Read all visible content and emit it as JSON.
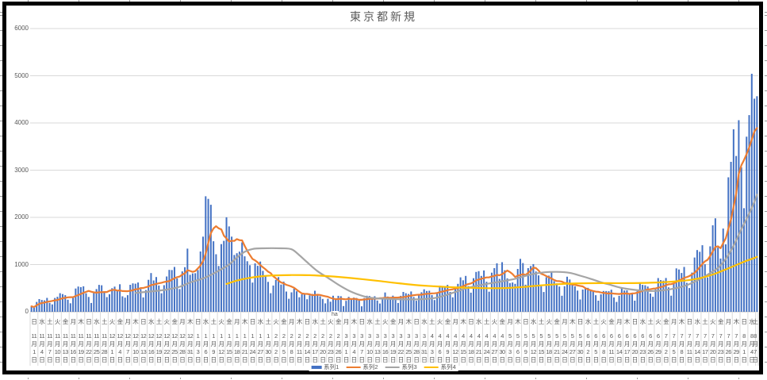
{
  "chart": {
    "title": "東京都新規",
    "stray_text": "ha"
  },
  "colors": {
    "bar": "#4472C4",
    "series2": "#ED7D31",
    "series3": "#A5A5A5",
    "series4": "#FFC000",
    "grid": "#D9D9D9",
    "axis_line": "#BFBFBF",
    "text": "#595959",
    "border": "#000000",
    "background": "#FFFFFF",
    "sheet_tick": "#9A9A9A"
  },
  "chart_data": {
    "type": "bar",
    "title": "東京都新規",
    "ylim": [
      0,
      6000
    ],
    "y_ticks": [
      0,
      1000,
      2000,
      3000,
      4000,
      5000,
      6000
    ],
    "grid": "horizontal",
    "legend_position": "bottom",
    "x_tick_every_days": 3,
    "label_suffix_month": "月",
    "label_suffix_day": "日",
    "x_tick_labels": [
      [
        "日",
        11,
        1
      ],
      [
        "水",
        11,
        4
      ],
      [
        "土",
        11,
        7
      ],
      [
        "火",
        11,
        10
      ],
      [
        "金",
        11,
        13
      ],
      [
        "月",
        11,
        16
      ],
      [
        "木",
        11,
        19
      ],
      [
        "日",
        11,
        22
      ],
      [
        "水",
        11,
        25
      ],
      [
        "土",
        11,
        28
      ],
      [
        "火",
        12,
        1
      ],
      [
        "金",
        12,
        4
      ],
      [
        "月",
        12,
        7
      ],
      [
        "木",
        12,
        10
      ],
      [
        "日",
        12,
        13
      ],
      [
        "水",
        12,
        16
      ],
      [
        "土",
        12,
        19
      ],
      [
        "火",
        12,
        22
      ],
      [
        "金",
        12,
        25
      ],
      [
        "月",
        12,
        28
      ],
      [
        "木",
        12,
        31
      ],
      [
        "日",
        1,
        3
      ],
      [
        "水",
        1,
        6
      ],
      [
        "土",
        1,
        9
      ],
      [
        "火",
        1,
        12
      ],
      [
        "金",
        1,
        15
      ],
      [
        "月",
        1,
        18
      ],
      [
        "木",
        1,
        21
      ],
      [
        "日",
        1,
        24
      ],
      [
        "水",
        1,
        27
      ],
      [
        "土",
        1,
        30
      ],
      [
        "火",
        2,
        2
      ],
      [
        "金",
        2,
        5
      ],
      [
        "月",
        2,
        8
      ],
      [
        "木",
        2,
        11
      ],
      [
        "日",
        2,
        14
      ],
      [
        "水",
        2,
        17
      ],
      [
        "土",
        2,
        20
      ],
      [
        "火",
        2,
        23
      ],
      [
        "金",
        2,
        26
      ],
      [
        "月",
        3,
        1
      ],
      [
        "木",
        3,
        4
      ],
      [
        "日",
        3,
        7
      ],
      [
        "水",
        3,
        10
      ],
      [
        "土",
        3,
        13
      ],
      [
        "火",
        3,
        16
      ],
      [
        "金",
        3,
        19
      ],
      [
        "月",
        3,
        22
      ],
      [
        "木",
        3,
        25
      ],
      [
        "日",
        3,
        28
      ],
      [
        "水",
        3,
        31
      ],
      [
        "土",
        4,
        3
      ],
      [
        "火",
        4,
        6
      ],
      [
        "金",
        4,
        9
      ],
      [
        "月",
        4,
        12
      ],
      [
        "木",
        4,
        15
      ],
      [
        "日",
        4,
        18
      ],
      [
        "水",
        4,
        21
      ],
      [
        "土",
        4,
        24
      ],
      [
        "火",
        4,
        27
      ],
      [
        "金",
        4,
        30
      ],
      [
        "月",
        5,
        3
      ],
      [
        "木",
        5,
        6
      ],
      [
        "日",
        5,
        9
      ],
      [
        "水",
        5,
        12
      ],
      [
        "土",
        5,
        15
      ],
      [
        "火",
        5,
        18
      ],
      [
        "金",
        5,
        21
      ],
      [
        "月",
        5,
        24
      ],
      [
        "木",
        5,
        27
      ],
      [
        "日",
        5,
        30
      ],
      [
        "水",
        6,
        2
      ],
      [
        "土",
        6,
        5
      ],
      [
        "火",
        6,
        8
      ],
      [
        "金",
        6,
        11
      ],
      [
        "月",
        6,
        14
      ],
      [
        "木",
        6,
        17
      ],
      [
        "日",
        6,
        20
      ],
      [
        "水",
        6,
        23
      ],
      [
        "土",
        6,
        26
      ],
      [
        "火",
        6,
        29
      ],
      [
        "金",
        7,
        2
      ],
      [
        "月",
        7,
        5
      ],
      [
        "木",
        7,
        8
      ],
      [
        "日",
        7,
        11
      ],
      [
        "水",
        7,
        14
      ],
      [
        "土",
        7,
        17
      ],
      [
        "火",
        7,
        20
      ],
      [
        "金",
        7,
        23
      ],
      [
        "月",
        7,
        26
      ],
      [
        "木",
        7,
        29
      ],
      [
        "日",
        8,
        1
      ],
      [
        "水",
        8,
        4
      ],
      [
        "土",
        8,
        7
      ]
    ],
    "series": [
      {
        "name": "系列1",
        "type": "bar",
        "color": "#4472C4",
        "values": [
          116,
          87,
          209,
          269,
          250,
          242,
          294,
          189,
          157,
          293,
          317,
          393,
          374,
          352,
          255,
          180,
          298,
          493,
          534,
          522,
          539,
          391,
          314,
          186,
          401,
          481,
          570,
          561,
          418,
          311,
          372,
          500,
          533,
          449,
          584,
          327,
          299,
          352,
          572,
          602,
          595,
          621,
          480,
          305,
          460,
          678,
          821,
          664,
          736,
          556,
          392,
          563,
          748,
          888,
          884,
          949,
          708,
          481,
          856,
          944,
          1337,
          783,
          814,
          816,
          884,
          1278,
          1591,
          2447,
          2392,
          2268,
          1494,
          1219,
          970,
          1433,
          1502,
          2001,
          1809,
          1592,
          1204,
          1240,
          1274,
          1471,
          1175,
          1070,
          986,
          618,
          1026,
          973,
          1064,
          868,
          769,
          633,
          393,
          556,
          676,
          734,
          577,
          639,
          429,
          276,
          412,
          491,
          434,
          307,
          369,
          371,
          266,
          350,
          378,
          445,
          353,
          327,
          272,
          178,
          275,
          213,
          340,
          270,
          337,
          329,
          121,
          232,
          316,
          279,
          301,
          293,
          237,
          116,
          290,
          340,
          335,
          304,
          330,
          239,
          175,
          300,
          409,
          323,
          303,
          342,
          256,
          187,
          337,
          420,
          394,
          376,
          430,
          313,
          234,
          364,
          414,
          475,
          440,
          446,
          355,
          249,
          399,
          555,
          545,
          537,
          570,
          421,
          306,
          510,
          591,
          729,
          667,
          759,
          543,
          405,
          711,
          843,
          861,
          759,
          876,
          635,
          425,
          828,
          925,
          1027,
          698,
          1050,
          879,
          708,
          609,
          621,
          591,
          907,
          1121,
          1032,
          573,
          925,
          969,
          1010,
          854,
          772,
          542,
          419,
          732,
          766,
          843,
          649,
          602,
          535,
          340,
          542,
          743,
          684,
          614,
          539,
          448,
          260,
          471,
          487,
          508,
          472,
          436,
          351,
          235,
          369,
          440,
          439,
          435,
          467,
          304,
          209,
          337,
          501,
          452,
          453,
          388,
          376,
          236,
          435,
          619,
          570,
          562,
          534,
          386,
          317,
          476,
          714,
          673,
          660,
          716,
          518,
          342,
          593,
          920,
          896,
          822,
          950,
          614,
          502,
          830,
          1149,
          1308,
          1271,
          1410,
          1008,
          727,
          1387,
          1832,
          1979,
          1359,
          1128,
          1763,
          1429,
          2848,
          3177,
          3865,
          3300,
          4058,
          3058,
          2195,
          3709,
          4166,
          5042,
          4515,
          4566
        ]
      },
      {
        "name": "系列2",
        "type": "line",
        "color": "#ED7D31",
        "derived": "7day_moving_average_of_series1"
      },
      {
        "name": "系列3",
        "type": "line",
        "color": "#A5A5A5",
        "points": [
          [
            40,
            400
          ],
          [
            46,
            430
          ],
          [
            52,
            470
          ],
          [
            57,
            530
          ],
          [
            61,
            620
          ],
          [
            64,
            670
          ],
          [
            67,
            730
          ],
          [
            70,
            810
          ],
          [
            73,
            900
          ],
          [
            76,
            1000
          ],
          [
            79,
            1150
          ],
          [
            82,
            1270
          ],
          [
            85,
            1330
          ],
          [
            89,
            1345
          ],
          [
            96,
            1345
          ],
          [
            100,
            1325
          ],
          [
            103,
            1200
          ],
          [
            106,
            1050
          ],
          [
            110,
            860
          ],
          [
            114,
            720
          ],
          [
            118,
            575
          ],
          [
            122,
            450
          ],
          [
            126,
            360
          ],
          [
            130,
            300
          ],
          [
            136,
            275
          ],
          [
            143,
            263
          ],
          [
            150,
            268
          ],
          [
            156,
            300
          ],
          [
            162,
            400
          ],
          [
            168,
            510
          ],
          [
            174,
            580
          ],
          [
            180,
            635
          ],
          [
            186,
            700
          ],
          [
            192,
            790
          ],
          [
            197,
            835
          ],
          [
            202,
            845
          ],
          [
            207,
            825
          ],
          [
            211,
            765
          ],
          [
            215,
            700
          ],
          [
            219,
            625
          ],
          [
            223,
            565
          ],
          [
            227,
            505
          ],
          [
            231,
            470
          ],
          [
            235,
            448
          ],
          [
            239,
            440
          ],
          [
            243,
            455
          ],
          [
            247,
            490
          ],
          [
            251,
            545
          ],
          [
            255,
            635
          ],
          [
            258,
            720
          ],
          [
            261,
            820
          ],
          [
            264,
            930
          ],
          [
            267,
            1120
          ],
          [
            270,
            1400
          ],
          [
            273,
            1750
          ],
          [
            276,
            2080
          ],
          [
            278,
            2330
          ],
          [
            279,
            2480
          ]
        ]
      },
      {
        "name": "系列4",
        "type": "line",
        "color": "#FFC000",
        "points": [
          [
            75,
            590
          ],
          [
            79,
            660
          ],
          [
            83,
            710
          ],
          [
            88,
            750
          ],
          [
            93,
            770
          ],
          [
            100,
            778
          ],
          [
            107,
            775
          ],
          [
            113,
            758
          ],
          [
            120,
            730
          ],
          [
            127,
            692
          ],
          [
            134,
            650
          ],
          [
            141,
            605
          ],
          [
            148,
            565
          ],
          [
            155,
            540
          ],
          [
            162,
            520
          ],
          [
            169,
            508
          ],
          [
            176,
            500
          ],
          [
            183,
            505
          ],
          [
            190,
            530
          ],
          [
            196,
            560
          ],
          [
            202,
            583
          ],
          [
            208,
            598
          ],
          [
            214,
            605
          ],
          [
            222,
            607
          ],
          [
            230,
            607
          ],
          [
            238,
            615
          ],
          [
            245,
            632
          ],
          [
            250,
            655
          ],
          [
            255,
            690
          ],
          [
            259,
            738
          ],
          [
            263,
            808
          ],
          [
            267,
            898
          ],
          [
            271,
            990
          ],
          [
            275,
            1080
          ],
          [
            278,
            1140
          ],
          [
            279,
            1165
          ]
        ]
      }
    ]
  }
}
